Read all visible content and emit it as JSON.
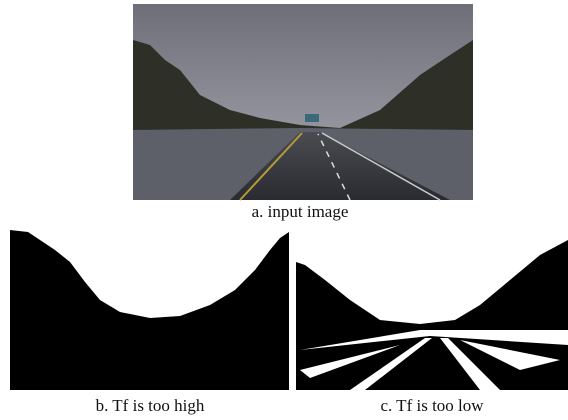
{
  "figure": {
    "panels": [
      {
        "caption": "a. input image"
      },
      {
        "caption": "b. Tf is too high"
      },
      {
        "caption": "c. Tf is too low"
      }
    ]
  }
}
